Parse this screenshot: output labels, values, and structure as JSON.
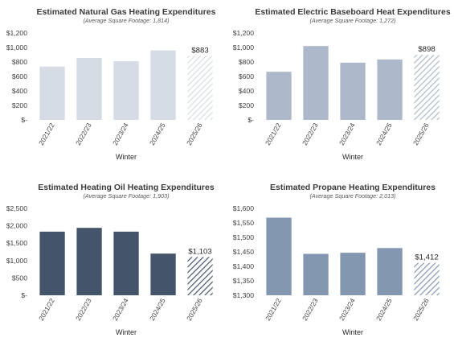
{
  "chart_data": [
    {
      "type": "bar",
      "title": "Estimated Natural Gas Heating Expenditures",
      "subtitle": "(Average Square Footage: 1,814)",
      "xlabel": "Winter",
      "ylabel": "",
      "categories": [
        "2021/22",
        "2022/23",
        "2023/24",
        "2024/25",
        "2025/26"
      ],
      "values": [
        735,
        855,
        810,
        960,
        883
      ],
      "ylim": [
        0,
        1200
      ],
      "yticks": [
        0,
        200,
        400,
        600,
        800,
        1000,
        1200
      ],
      "ytick_labels": [
        "$-",
        "$200",
        "$400",
        "$600",
        "$800",
        "$1,000",
        "$1,200"
      ],
      "data_labels": [
        {
          "index": 4,
          "text": "$883"
        }
      ],
      "forecast_index": 4,
      "color": "#d6dce5",
      "grid": false
    },
    {
      "type": "bar",
      "title": "Estimated Electric Baseboard Heat Expenditures",
      "subtitle": "(Average Square Footage: 1,272)",
      "xlabel": "Winter",
      "ylabel": "",
      "categories": [
        "2021/22",
        "2022/23",
        "2023/24",
        "2024/25",
        "2025/26"
      ],
      "values": [
        665,
        1020,
        790,
        835,
        898
      ],
      "ylim": [
        0,
        1200
      ],
      "yticks": [
        0,
        200,
        400,
        600,
        800,
        1000,
        1200
      ],
      "ytick_labels": [
        "$-",
        "$200",
        "$400",
        "$600",
        "$800",
        "$1,000",
        "$1,200"
      ],
      "data_labels": [
        {
          "index": 4,
          "text": "$898"
        }
      ],
      "forecast_index": 4,
      "color": "#adb9ca",
      "grid": false
    },
    {
      "type": "bar",
      "title": "Estimated Heating Oil Heating Expenditures",
      "subtitle": "(Average Square Footage: 1,903)",
      "xlabel": "Winter",
      "ylabel": "",
      "categories": [
        "2021/22",
        "2022/23",
        "2023/24",
        "2024/25",
        "2025/26"
      ],
      "values": [
        1830,
        1940,
        1830,
        1200,
        1103
      ],
      "ylim": [
        0,
        2500
      ],
      "yticks": [
        0,
        500,
        1000,
        1500,
        2000,
        2500
      ],
      "ytick_labels": [
        "$-",
        "$500",
        "$1,000",
        "$1,500",
        "$2,000",
        "$2,500"
      ],
      "data_labels": [
        {
          "index": 4,
          "text": "$1,103"
        }
      ],
      "forecast_index": 4,
      "color": "#44546a",
      "grid": false
    },
    {
      "type": "bar",
      "title": "Estimated Propane Heating Expenditures",
      "subtitle": "(Average Square Footage: 2,013)",
      "xlabel": "Winter",
      "ylabel": "",
      "categories": [
        "2021/22",
        "2022/23",
        "2023/24",
        "2024/25",
        "2025/26"
      ],
      "values": [
        1568,
        1443,
        1447,
        1463,
        1412
      ],
      "ylim": [
        1300,
        1600
      ],
      "yticks": [
        1300,
        1350,
        1400,
        1450,
        1500,
        1550,
        1600
      ],
      "ytick_labels": [
        "$1,300",
        "$1,350",
        "$1,400",
        "$1,450",
        "$1,500",
        "$1,550",
        "$1,600"
      ],
      "data_labels": [
        {
          "index": 4,
          "text": "$1,412"
        }
      ],
      "forecast_index": 4,
      "color": "#8497b0",
      "grid": false
    }
  ]
}
